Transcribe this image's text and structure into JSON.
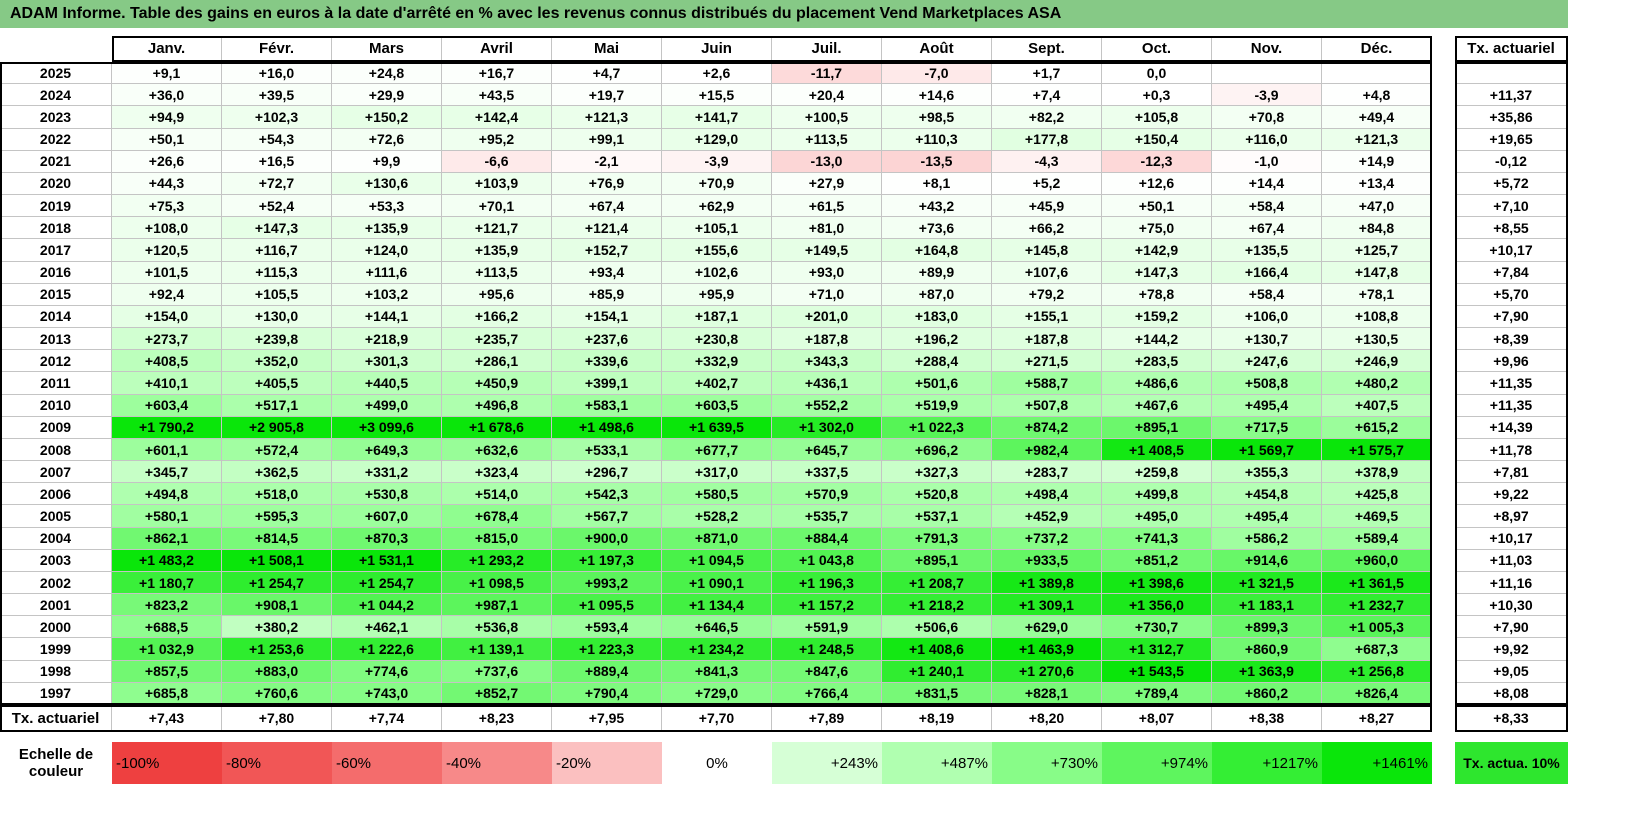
{
  "title": "ADAM Informe. Table des gains en euros à la date d'arrêté en % avec les revenus connus distribués du placement Vend Marketplaces ASA",
  "table": {
    "columns": [
      "Janv.",
      "Févr.",
      "Mars",
      "Avril",
      "Mai",
      "Juin",
      "Juil.",
      "Août",
      "Sept.",
      "Oct.",
      "Nov.",
      "Déc."
    ],
    "tx_header": "Tx. actuariel",
    "rows": [
      {
        "year": "2025",
        "cells": [
          "+9,1",
          "+16,0",
          "+24,8",
          "+16,7",
          "+4,7",
          "+2,6",
          "-11,7",
          "-7,0",
          "+1,7",
          "0,0",
          null,
          null
        ],
        "tx": null
      },
      {
        "year": "2024",
        "cells": [
          "+36,0",
          "+39,5",
          "+29,9",
          "+43,5",
          "+19,7",
          "+15,5",
          "+20,4",
          "+14,6",
          "+7,4",
          "+0,3",
          "-3,9",
          "+4,8"
        ],
        "tx": "+11,37"
      },
      {
        "year": "2023",
        "cells": [
          "+94,9",
          "+102,3",
          "+150,2",
          "+142,4",
          "+121,3",
          "+141,7",
          "+100,5",
          "+98,5",
          "+82,2",
          "+105,8",
          "+70,8",
          "+49,4"
        ],
        "tx": "+35,86"
      },
      {
        "year": "2022",
        "cells": [
          "+50,1",
          "+54,3",
          "+72,6",
          "+95,2",
          "+99,1",
          "+129,0",
          "+113,5",
          "+110,3",
          "+177,8",
          "+150,4",
          "+116,0",
          "+121,3"
        ],
        "tx": "+19,65"
      },
      {
        "year": "2021",
        "cells": [
          "+26,6",
          "+16,5",
          "+9,9",
          "-6,6",
          "-2,1",
          "-3,9",
          "-13,0",
          "-13,5",
          "-4,3",
          "-12,3",
          "-1,0",
          "+14,9"
        ],
        "tx": "-0,12"
      },
      {
        "year": "2020",
        "cells": [
          "+44,3",
          "+72,7",
          "+130,6",
          "+103,9",
          "+76,9",
          "+70,9",
          "+27,9",
          "+8,1",
          "+5,2",
          "+12,6",
          "+14,4",
          "+13,4"
        ],
        "tx": "+5,72"
      },
      {
        "year": "2019",
        "cells": [
          "+75,3",
          "+52,4",
          "+53,3",
          "+70,1",
          "+67,4",
          "+62,9",
          "+61,5",
          "+43,2",
          "+45,9",
          "+50,1",
          "+58,4",
          "+47,0"
        ],
        "tx": "+7,10"
      },
      {
        "year": "2018",
        "cells": [
          "+108,0",
          "+147,3",
          "+135,9",
          "+121,7",
          "+121,4",
          "+105,1",
          "+81,0",
          "+73,6",
          "+66,2",
          "+75,0",
          "+67,4",
          "+84,8"
        ],
        "tx": "+8,55"
      },
      {
        "year": "2017",
        "cells": [
          "+120,5",
          "+116,7",
          "+124,0",
          "+135,9",
          "+152,7",
          "+155,6",
          "+149,5",
          "+164,8",
          "+145,8",
          "+142,9",
          "+135,5",
          "+125,7"
        ],
        "tx": "+10,17"
      },
      {
        "year": "2016",
        "cells": [
          "+101,5",
          "+115,3",
          "+111,6",
          "+113,5",
          "+93,4",
          "+102,6",
          "+93,0",
          "+89,9",
          "+107,6",
          "+147,3",
          "+166,4",
          "+147,8"
        ],
        "tx": "+7,84"
      },
      {
        "year": "2015",
        "cells": [
          "+92,4",
          "+105,5",
          "+103,2",
          "+95,6",
          "+85,9",
          "+95,9",
          "+71,0",
          "+87,0",
          "+79,2",
          "+78,8",
          "+58,4",
          "+78,1"
        ],
        "tx": "+5,70"
      },
      {
        "year": "2014",
        "cells": [
          "+154,0",
          "+130,0",
          "+144,1",
          "+166,2",
          "+154,1",
          "+187,1",
          "+201,0",
          "+183,0",
          "+155,1",
          "+159,2",
          "+106,0",
          "+108,8"
        ],
        "tx": "+7,90"
      },
      {
        "year": "2013",
        "cells": [
          "+273,7",
          "+239,8",
          "+218,9",
          "+235,7",
          "+237,6",
          "+230,8",
          "+187,8",
          "+196,2",
          "+187,8",
          "+144,2",
          "+130,7",
          "+130,5"
        ],
        "tx": "+8,39"
      },
      {
        "year": "2012",
        "cells": [
          "+408,5",
          "+352,0",
          "+301,3",
          "+286,1",
          "+339,6",
          "+332,9",
          "+343,3",
          "+288,4",
          "+271,5",
          "+283,5",
          "+247,6",
          "+246,9"
        ],
        "tx": "+9,96"
      },
      {
        "year": "2011",
        "cells": [
          "+410,1",
          "+405,5",
          "+440,5",
          "+450,9",
          "+399,1",
          "+402,7",
          "+436,1",
          "+501,6",
          "+588,7",
          "+486,6",
          "+508,8",
          "+480,2"
        ],
        "tx": "+11,35"
      },
      {
        "year": "2010",
        "cells": [
          "+603,4",
          "+517,1",
          "+499,0",
          "+496,8",
          "+583,1",
          "+603,5",
          "+552,2",
          "+519,9",
          "+507,8",
          "+467,6",
          "+495,4",
          "+407,5"
        ],
        "tx": "+11,35"
      },
      {
        "year": "2009",
        "cells": [
          "+1 790,2",
          "+2 905,8",
          "+3 099,6",
          "+1 678,6",
          "+1 498,6",
          "+1 639,5",
          "+1 302,0",
          "+1 022,3",
          "+874,2",
          "+895,1",
          "+717,5",
          "+615,2"
        ],
        "tx": "+14,39"
      },
      {
        "year": "2008",
        "cells": [
          "+601,1",
          "+572,4",
          "+649,3",
          "+632,6",
          "+533,1",
          "+677,7",
          "+645,7",
          "+696,2",
          "+982,4",
          "+1 408,5",
          "+1 569,7",
          "+1 575,7"
        ],
        "tx": "+11,78"
      },
      {
        "year": "2007",
        "cells": [
          "+345,7",
          "+362,5",
          "+331,2",
          "+323,4",
          "+296,7",
          "+317,0",
          "+337,5",
          "+327,3",
          "+283,7",
          "+259,8",
          "+355,3",
          "+378,9"
        ],
        "tx": "+7,81"
      },
      {
        "year": "2006",
        "cells": [
          "+494,8",
          "+518,0",
          "+530,8",
          "+514,0",
          "+542,3",
          "+580,5",
          "+570,9",
          "+520,8",
          "+498,4",
          "+499,8",
          "+454,8",
          "+425,8"
        ],
        "tx": "+9,22"
      },
      {
        "year": "2005",
        "cells": [
          "+580,1",
          "+595,3",
          "+607,0",
          "+678,4",
          "+567,7",
          "+528,2",
          "+535,7",
          "+537,1",
          "+452,9",
          "+495,0",
          "+495,4",
          "+469,5"
        ],
        "tx": "+8,97"
      },
      {
        "year": "2004",
        "cells": [
          "+862,1",
          "+814,5",
          "+870,3",
          "+815,0",
          "+900,0",
          "+871,0",
          "+884,4",
          "+791,3",
          "+737,2",
          "+741,3",
          "+586,2",
          "+589,4"
        ],
        "tx": "+10,17"
      },
      {
        "year": "2003",
        "cells": [
          "+1 483,2",
          "+1 508,1",
          "+1 531,1",
          "+1 293,2",
          "+1 197,3",
          "+1 094,5",
          "+1 043,8",
          "+895,1",
          "+933,5",
          "+851,2",
          "+914,6",
          "+960,0"
        ],
        "tx": "+11,03"
      },
      {
        "year": "2002",
        "cells": [
          "+1 180,7",
          "+1 254,7",
          "+1 254,7",
          "+1 098,5",
          "+993,2",
          "+1 090,1",
          "+1 196,3",
          "+1 208,7",
          "+1 389,8",
          "+1 398,6",
          "+1 321,5",
          "+1 361,5"
        ],
        "tx": "+11,16"
      },
      {
        "year": "2001",
        "cells": [
          "+823,2",
          "+908,1",
          "+1 044,2",
          "+987,1",
          "+1 095,5",
          "+1 134,4",
          "+1 157,2",
          "+1 218,2",
          "+1 309,1",
          "+1 356,0",
          "+1 183,1",
          "+1 232,7"
        ],
        "tx": "+10,30"
      },
      {
        "year": "2000",
        "cells": [
          "+688,5",
          "+380,2",
          "+462,1",
          "+536,8",
          "+593,4",
          "+646,5",
          "+591,9",
          "+506,6",
          "+629,0",
          "+730,7",
          "+899,3",
          "+1 005,3"
        ],
        "tx": "+7,90"
      },
      {
        "year": "1999",
        "cells": [
          "+1 032,9",
          "+1 253,6",
          "+1 222,6",
          "+1 139,1",
          "+1 223,3",
          "+1 234,2",
          "+1 248,5",
          "+1 408,6",
          "+1 463,9",
          "+1 312,7",
          "+860,9",
          "+687,3"
        ],
        "tx": "+9,92"
      },
      {
        "year": "1998",
        "cells": [
          "+857,5",
          "+883,0",
          "+774,6",
          "+737,6",
          "+889,4",
          "+841,3",
          "+847,6",
          "+1 240,1",
          "+1 270,6",
          "+1 543,5",
          "+1 363,9",
          "+1 256,8"
        ],
        "tx": "+9,05"
      },
      {
        "year": "1997",
        "cells": [
          "+685,8",
          "+760,6",
          "+743,0",
          "+852,7",
          "+790,4",
          "+729,0",
          "+766,4",
          "+831,5",
          "+828,1",
          "+789,4",
          "+860,2",
          "+826,4"
        ],
        "tx": "+8,08"
      }
    ],
    "footer": {
      "label": "Tx. actuariel",
      "cells": [
        "+7,43",
        "+7,80",
        "+7,74",
        "+8,23",
        "+7,95",
        "+7,70",
        "+7,89",
        "+8,19",
        "+8,20",
        "+8,07",
        "+8,38",
        "+8,27"
      ],
      "tx": "+8,33"
    }
  },
  "scale": {
    "label": "Echelle de couleur",
    "steps": [
      {
        "label": "-100%",
        "color": "#ee4040"
      },
      {
        "label": "-80%",
        "color": "#f15656"
      },
      {
        "label": "-60%",
        "color": "#f46c6c"
      },
      {
        "label": "-40%",
        "color": "#f78989"
      },
      {
        "label": "-20%",
        "color": "#fbc0c0"
      },
      {
        "label": "0%",
        "color": "#ffffff"
      },
      {
        "label": "+243%",
        "color": "#d6ffd6"
      },
      {
        "label": "+487%",
        "color": "#b0ffb0"
      },
      {
        "label": "+730%",
        "color": "#88fc88"
      },
      {
        "label": "+974%",
        "color": "#5ef55e"
      },
      {
        "label": "+1217%",
        "color": "#34ee34"
      },
      {
        "label": "+1461%",
        "color": "#0ae60a"
      }
    ],
    "tx": {
      "label": "Tx. actua. 10%",
      "color": "#2ee62e"
    }
  }
}
